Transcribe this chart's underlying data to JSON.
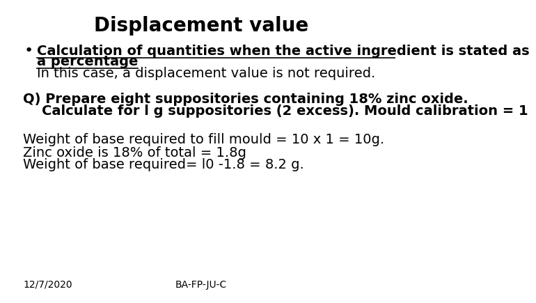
{
  "title": "Displacement value",
  "title_fontsize": 20,
  "title_fontweight": "bold",
  "background_color": "#ffffff",
  "text_color": "#000000",
  "bullet_underline_text_line1": "Calculation of quantities when the active ingredient is stated as",
  "bullet_underline_text_line2": "a percentage",
  "bullet_normal_text": "In this case, a displacement value is not required.",
  "q_line1": "Q) Prepare eight suppositories containing 18% zinc oxide.",
  "q_line2": "    Calculate for l g suppositories (2 excess). Mould calibration = 1",
  "calc_line1": "Weight of base required to fill mould = 10 x 1 = 10g.",
  "calc_line2": "Zinc oxide is 18% of total = 1.8g",
  "calc_line3": "Weight of base required= l0 -1.8 = 8.2 g.",
  "footer_left": "12/7/2020",
  "footer_center": "BA-FP-JU-C",
  "footer_fontsize": 10,
  "body_fontsize": 14,
  "q_fontsize": 14,
  "bullet_fontsize": 14
}
